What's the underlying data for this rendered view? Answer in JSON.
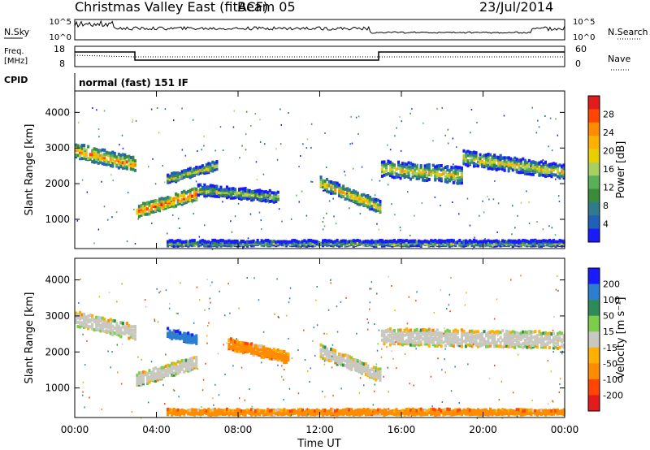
{
  "header": {
    "title": "Christmas Valley East (fitACF)",
    "beam": "Beam 05",
    "date": "23/Jul/2014"
  },
  "status_panels": {
    "nsky_label": "N.Sky",
    "nsky_ticks": [
      "10^5",
      "10^0"
    ],
    "nsearch_label": "N.Search",
    "nsearch_ticks": [
      "10^5",
      "10^0"
    ],
    "freq_label_1": "Freq.",
    "freq_label_2": "[MHz]",
    "freq_ticks": [
      "18",
      "8"
    ],
    "nave_label": "Nave",
    "nave_ticks": [
      "60",
      "0"
    ],
    "cpid_label": "CPID",
    "cpid_text": "normal (fast) 151 IF"
  },
  "colorbars": {
    "power": {
      "label": "Power [dB]",
      "ticks": [
        "28",
        "24",
        "20",
        "16",
        "12",
        "8",
        "4"
      ],
      "colors": [
        "#e41a1c",
        "#ff4500",
        "#ff8c00",
        "#ffb000",
        "#e8d000",
        "#a8d060",
        "#58b058",
        "#3a8c3a",
        "#2f7a8c",
        "#2060b8",
        "#1a1aff"
      ]
    },
    "velocity": {
      "label": "Velocity [m s⁻¹]",
      "ticks": [
        "200",
        "100",
        "50",
        "15",
        "-15",
        "-50",
        "-100",
        "-200"
      ],
      "colors": [
        "#1a1aff",
        "#2a7fd0",
        "#2e8b57",
        "#7ccd4a",
        "#c8c8c0",
        "#ffb000",
        "#ff8c00",
        "#ff4500",
        "#e41a1c"
      ]
    }
  },
  "chart_data": [
    {
      "type": "heatmap",
      "title": "Power",
      "xlabel": "Time UT",
      "ylabel": "Slant Range [km]",
      "x_ticks": [
        "00:00",
        "04:00",
        "08:00",
        "12:00",
        "16:00",
        "20:00",
        "00:00"
      ],
      "x_range_hours": [
        0,
        24
      ],
      "y_ticks": [
        1000,
        2000,
        3000,
        4000
      ],
      "ylim": [
        180,
        4600
      ],
      "grid": false,
      "legend": "right colorbar",
      "echo_bands": [
        {
          "t0": 0.0,
          "t1": 3.0,
          "r_start": 2900,
          "r_end": 2500,
          "width": 350,
          "value": 24
        },
        {
          "t0": 3.0,
          "t1": 6.0,
          "r_start": 1200,
          "r_end": 1700,
          "width": 300,
          "value": 26
        },
        {
          "t0": 6.0,
          "t1": 10.0,
          "r_start": 1800,
          "r_end": 1600,
          "width": 250,
          "value": 18
        },
        {
          "t0": 4.5,
          "t1": 7.0,
          "r_start": 2100,
          "r_end": 2500,
          "width": 200,
          "value": 20
        },
        {
          "t0": 12.0,
          "t1": 15.0,
          "r_start": 2000,
          "r_end": 1300,
          "width": 300,
          "value": 22
        },
        {
          "t0": 15.0,
          "t1": 19.0,
          "r_start": 2400,
          "r_end": 2200,
          "width": 400,
          "value": 20
        },
        {
          "t0": 19.0,
          "t1": 24.0,
          "r_start": 2700,
          "r_end": 2300,
          "width": 350,
          "value": 20
        },
        {
          "t0": 4.5,
          "t1": 24.0,
          "r_start": 300,
          "r_end": 300,
          "width": 120,
          "value": 16
        }
      ]
    },
    {
      "type": "heatmap",
      "title": "Velocity",
      "xlabel": "Time UT",
      "ylabel": "Slant Range [km]",
      "x_ticks": [
        "00:00",
        "04:00",
        "08:00",
        "12:00",
        "16:00",
        "20:00",
        "00:00"
      ],
      "x_range_hours": [
        0,
        24
      ],
      "y_ticks": [
        1000,
        2000,
        3000,
        4000
      ],
      "ylim": [
        180,
        4600
      ],
      "grid": false,
      "legend": "right colorbar",
      "echo_bands": [
        {
          "t0": 0.0,
          "t1": 3.0,
          "r_start": 2900,
          "r_end": 2500,
          "width": 350,
          "value": 0
        },
        {
          "t0": 3.0,
          "t1": 6.0,
          "r_start": 1200,
          "r_end": 1700,
          "width": 300,
          "value": 0
        },
        {
          "t0": 7.5,
          "t1": 10.5,
          "r_start": 2200,
          "r_end": 1800,
          "width": 250,
          "value": -60
        },
        {
          "t0": 4.5,
          "t1": 6.0,
          "r_start": 2500,
          "r_end": 2300,
          "width": 200,
          "value": 180
        },
        {
          "t0": 12.0,
          "t1": 15.0,
          "r_start": 2000,
          "r_end": 1300,
          "width": 300,
          "value": 0
        },
        {
          "t0": 15.0,
          "t1": 24.0,
          "r_start": 2400,
          "r_end": 2300,
          "width": 400,
          "value": 0
        },
        {
          "t0": 4.5,
          "t1": 24.0,
          "r_start": 300,
          "r_end": 300,
          "width": 120,
          "value": -60
        }
      ]
    }
  ]
}
